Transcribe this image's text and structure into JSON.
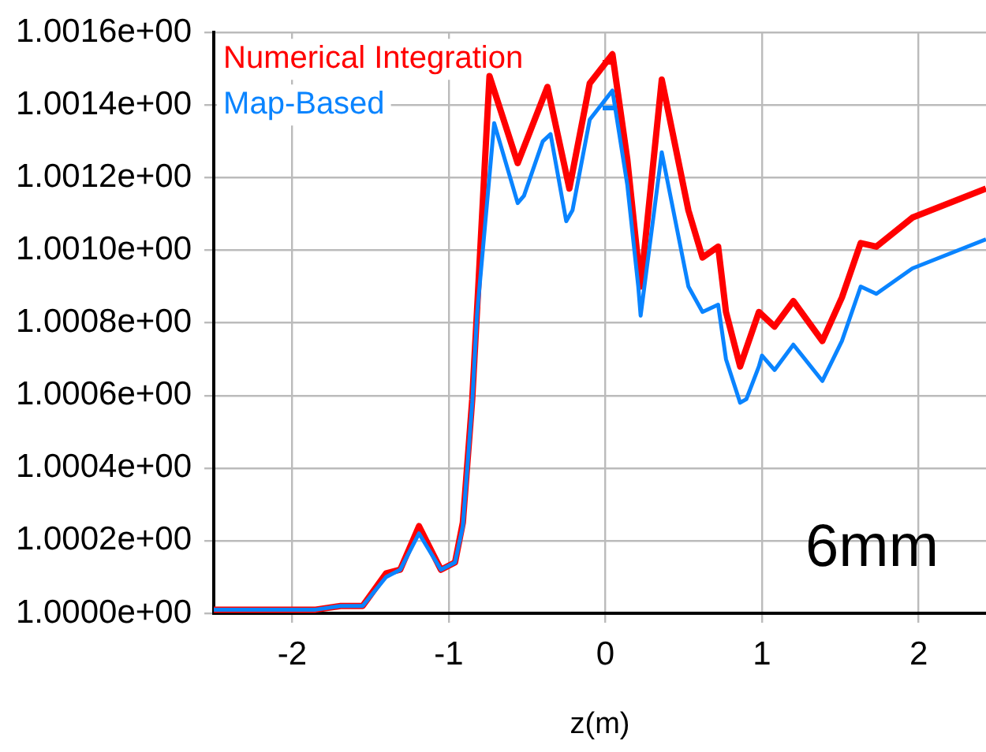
{
  "chart_data": {
    "type": "line",
    "xlabel": "z(m)",
    "xlim": [
      -2.5,
      2.43
    ],
    "xticks": [
      -2,
      -1,
      0,
      1,
      2
    ],
    "ylim": [
      1.0,
      1.0016
    ],
    "yticks": [
      {
        "value": 1.0,
        "label": "1.0000e+00"
      },
      {
        "value": 1.0002,
        "label": "1.0002e+00"
      },
      {
        "value": 1.0004,
        "label": "1.0004e+00"
      },
      {
        "value": 1.0006,
        "label": "1.0006e+00"
      },
      {
        "value": 1.0008,
        "label": "1.0008e+00"
      },
      {
        "value": 1.001,
        "label": "1.0010e+00"
      },
      {
        "value": 1.0012,
        "label": "1.0012e+00"
      },
      {
        "value": 1.0014,
        "label": "1.0014e+00"
      },
      {
        "value": 1.0016,
        "label": "1.0016e+00"
      }
    ],
    "grid": true,
    "legend": "top left",
    "marker": "none",
    "line_style": "solid",
    "annotations": [
      "6mm"
    ],
    "series": [
      {
        "name": "Numerical Integration",
        "color": "#ff0000",
        "x": [
          -2.5,
          -1.85,
          -1.69,
          -1.55,
          -1.4,
          -1.31,
          -1.19,
          -1.05,
          -0.96,
          -0.91,
          -0.85,
          -0.82,
          -0.74,
          -0.56,
          -0.37,
          -0.23,
          -0.1,
          0.045,
          0.14,
          0.225,
          0.36,
          0.53,
          0.62,
          0.72,
          0.77,
          0.86,
          0.98,
          1.08,
          1.2,
          1.385,
          1.51,
          1.63,
          1.73,
          1.96,
          2.43
        ],
        "values": [
          1.00001,
          1.00001,
          1.00002,
          1.00002,
          1.00011,
          1.00012,
          1.00024,
          1.00012,
          1.00014,
          1.00025,
          1.00059,
          1.00083,
          1.00148,
          1.00124,
          1.00145,
          1.00117,
          1.00146,
          1.00154,
          1.00125,
          1.0009,
          1.00147,
          1.00111,
          1.00098,
          1.00101,
          1.00083,
          1.00068,
          1.00083,
          1.00079,
          1.00086,
          1.00075,
          1.00087,
          1.00102,
          1.00101,
          1.00109,
          1.00117
        ]
      },
      {
        "name": "Map-Based",
        "color": "#0a84ff",
        "x": [
          -2.5,
          -1.85,
          -1.69,
          -1.55,
          -1.4,
          -1.31,
          -1.19,
          -1.05,
          -0.96,
          -0.91,
          -0.85,
          -0.82,
          -0.71,
          -0.56,
          -0.52,
          -0.4,
          -0.35,
          -0.25,
          -0.21,
          -0.1,
          0.045,
          0.14,
          0.21,
          0.225,
          0.36,
          0.53,
          0.62,
          0.72,
          0.77,
          0.86,
          0.9,
          0.98,
          1.0,
          1.08,
          1.2,
          1.385,
          1.51,
          1.63,
          1.73,
          1.96,
          2.43
        ],
        "values": [
          1.00001,
          1.00001,
          1.00002,
          1.00002,
          1.0001,
          1.00012,
          1.00022,
          1.00012,
          1.00014,
          1.00024,
          1.00058,
          1.00082,
          1.00135,
          1.00113,
          1.00115,
          1.0013,
          1.00132,
          1.00108,
          1.00111,
          1.00136,
          1.00144,
          1.00118,
          1.0009,
          1.00082,
          1.00127,
          1.0009,
          1.00083,
          1.00085,
          1.0007,
          1.00058,
          1.00059,
          1.00068,
          1.00071,
          1.00067,
          1.00074,
          1.00064,
          1.00075,
          1.0009,
          1.00088,
          1.00095,
          1.00103
        ]
      }
    ]
  }
}
